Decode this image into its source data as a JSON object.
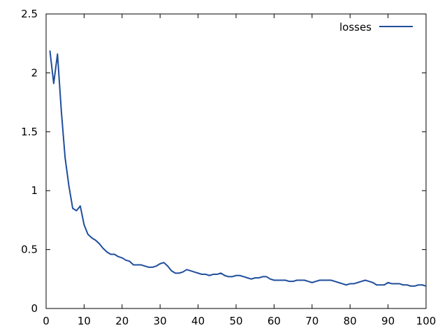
{
  "chart_data": {
    "type": "line",
    "title": "",
    "xlabel": "",
    "ylabel": "",
    "xlim": [
      0,
      100
    ],
    "ylim": [
      0,
      2.5
    ],
    "xticks": [
      0,
      10,
      20,
      30,
      40,
      50,
      60,
      70,
      80,
      90,
      100
    ],
    "yticks": [
      0,
      0.5,
      1,
      1.5,
      2,
      2.5
    ],
    "xtick_labels": [
      "0",
      "10",
      "20",
      "30",
      "40",
      "50",
      "60",
      "70",
      "80",
      "90",
      "100"
    ],
    "ytick_labels": [
      "0",
      "0.5",
      "1",
      "1.5",
      "2",
      "2.5"
    ],
    "grid": false,
    "legend_position": "top-right",
    "series": [
      {
        "name": "losses",
        "color": "#1f4e9c",
        "x": [
          1,
          2,
          3,
          4,
          5,
          6,
          7,
          8,
          9,
          10,
          11,
          12,
          13,
          14,
          15,
          16,
          17,
          18,
          19,
          20,
          21,
          22,
          23,
          24,
          25,
          26,
          27,
          28,
          29,
          30,
          31,
          32,
          33,
          34,
          35,
          36,
          37,
          38,
          39,
          40,
          41,
          42,
          43,
          44,
          45,
          46,
          47,
          48,
          49,
          50,
          51,
          52,
          53,
          54,
          55,
          56,
          57,
          58,
          59,
          60,
          61,
          62,
          63,
          64,
          65,
          66,
          67,
          68,
          69,
          70,
          71,
          72,
          73,
          74,
          75,
          76,
          77,
          78,
          79,
          80,
          81,
          82,
          83,
          84,
          85,
          86,
          87,
          88,
          89,
          90,
          91,
          92,
          93,
          94,
          95,
          96,
          97,
          98,
          99,
          100
        ],
        "values": [
          2.19,
          1.91,
          2.16,
          1.68,
          1.28,
          1.04,
          0.85,
          0.83,
          0.87,
          0.71,
          0.63,
          0.6,
          0.58,
          0.55,
          0.51,
          0.48,
          0.46,
          0.46,
          0.44,
          0.43,
          0.41,
          0.4,
          0.37,
          0.37,
          0.37,
          0.36,
          0.35,
          0.35,
          0.36,
          0.38,
          0.39,
          0.36,
          0.32,
          0.3,
          0.3,
          0.31,
          0.33,
          0.32,
          0.31,
          0.3,
          0.29,
          0.29,
          0.28,
          0.29,
          0.29,
          0.3,
          0.28,
          0.27,
          0.27,
          0.28,
          0.28,
          0.27,
          0.26,
          0.25,
          0.26,
          0.26,
          0.27,
          0.27,
          0.25,
          0.24,
          0.24,
          0.24,
          0.24,
          0.23,
          0.23,
          0.24,
          0.24,
          0.24,
          0.23,
          0.22,
          0.23,
          0.24,
          0.24,
          0.24,
          0.24,
          0.23,
          0.22,
          0.21,
          0.2,
          0.21,
          0.21,
          0.22,
          0.23,
          0.24,
          0.23,
          0.22,
          0.2,
          0.2,
          0.2,
          0.22,
          0.21,
          0.21,
          0.21,
          0.2,
          0.2,
          0.19,
          0.19,
          0.2,
          0.2,
          0.19
        ]
      }
    ]
  }
}
